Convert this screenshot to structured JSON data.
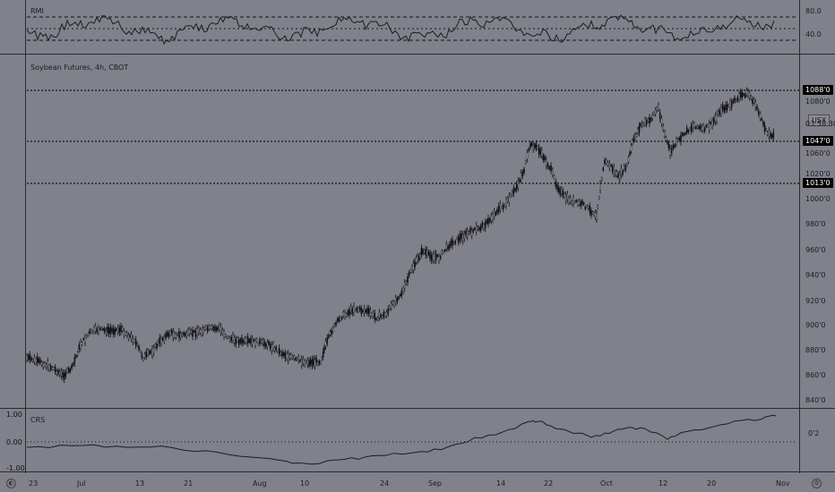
{
  "rmi": {
    "title": "RMI",
    "ticks": [
      "80.0",
      "40.0"
    ]
  },
  "main": {
    "symbol_title": "Soybean Futures, 4h, CBOT",
    "currency_button": "USX",
    "price_ticks": [
      "1080'0",
      "1060'0",
      "1020'0",
      "1000'0",
      "980'0",
      "960'0",
      "940'0",
      "920'0",
      "900'0",
      "880'0",
      "860'0",
      "840'0"
    ],
    "level_tags": [
      "1088'0",
      "1047'0",
      "1013'0"
    ],
    "countdown": "03:58:30"
  },
  "crs": {
    "title": "CRS",
    "left_ticks": [
      "1.00",
      "0.00",
      "-1.00"
    ],
    "right_tick": "0'2"
  },
  "time_axis": {
    "labels": [
      "23",
      "Jul",
      "13",
      "21",
      "Aug",
      "10",
      "24",
      "Sep",
      "14",
      "22",
      "Oct",
      "12",
      "20",
      "Nov"
    ]
  },
  "icons": {
    "bottom_left": "globe-icon",
    "bottom_right": "settings-icon"
  }
}
